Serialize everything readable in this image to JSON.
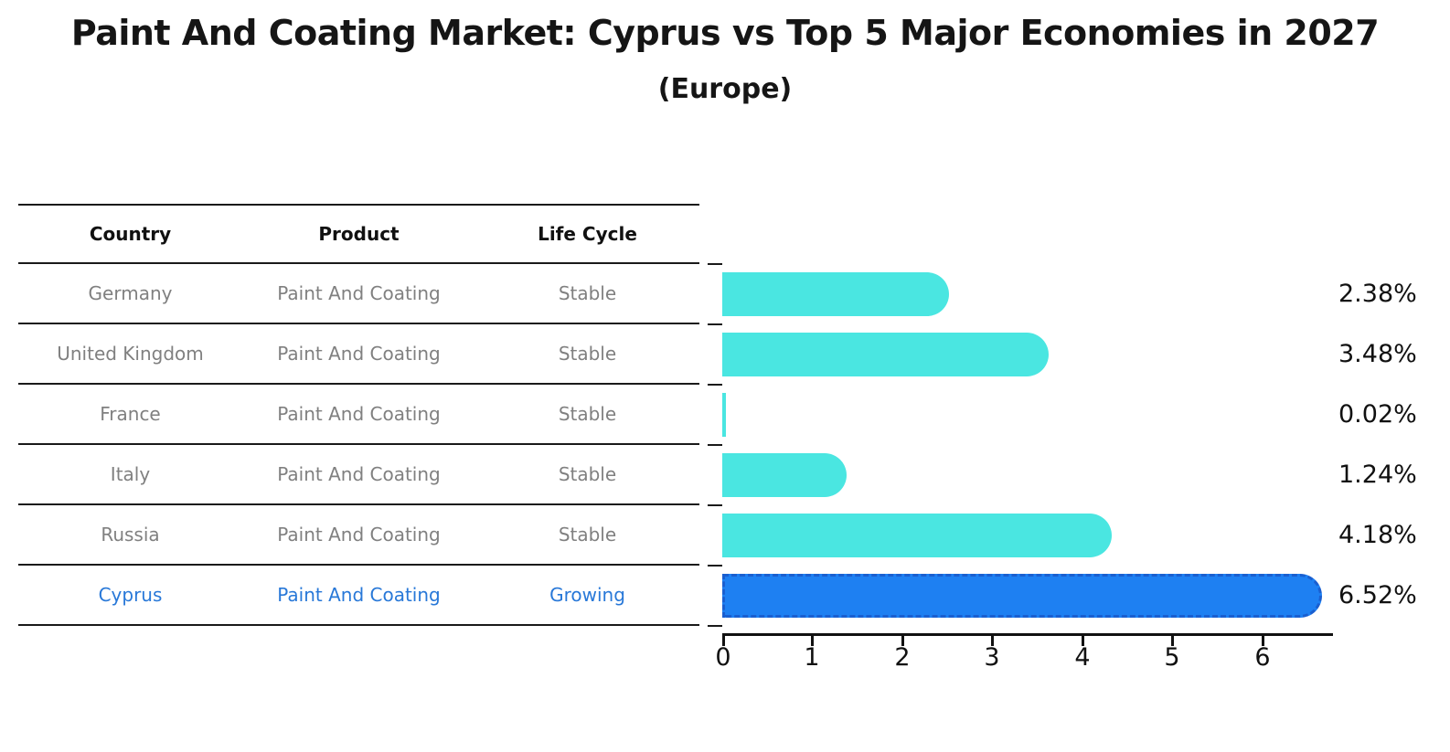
{
  "title": "Paint And Coating Market: Cyprus vs Top 5 Major Economies in 2027",
  "subtitle": "(Europe)",
  "table": {
    "columns": [
      "Country",
      "Product",
      "Life Cycle"
    ],
    "rows": [
      {
        "country": "Germany",
        "product": "Paint And Coating",
        "life_cycle": "Stable"
      },
      {
        "country": "United Kingdom",
        "product": "Paint And Coating",
        "life_cycle": "Stable"
      },
      {
        "country": "France",
        "product": "Paint And Coating",
        "life_cycle": "Stable"
      },
      {
        "country": "Italy",
        "product": "Paint And Coating",
        "life_cycle": "Stable"
      },
      {
        "country": "Russia",
        "product": "Paint And Coating",
        "life_cycle": "Stable"
      },
      {
        "country": "Cyprus",
        "product": "Paint And Coating",
        "life_cycle": "Growing"
      }
    ],
    "highlight_row": "Cyprus"
  },
  "chart_data": {
    "type": "bar",
    "orientation": "horizontal",
    "title": "Paint And Coating Market: Cyprus vs Top 5 Major Economies in 2027 (Europe)",
    "categories": [
      "Germany",
      "United Kingdom",
      "France",
      "Italy",
      "Russia",
      "Cyprus"
    ],
    "values": [
      2.38,
      3.48,
      0.02,
      1.24,
      4.18,
      6.52
    ],
    "value_labels": [
      "2.38%",
      "3.48%",
      "0.02%",
      "1.24%",
      "4.18%",
      "6.52%"
    ],
    "unit": "%",
    "xlim": [
      0,
      6.8
    ],
    "xticks": [
      "0",
      "1",
      "2",
      "3",
      "4",
      "5",
      "6"
    ],
    "grid": "off",
    "legend": "none",
    "highlight_index": 5,
    "bar_color": "#4AE6E1",
    "highlight_color": "#1E80F2",
    "highlight_border_color": "#1A5FD0"
  },
  "colors": {
    "row_text": "#808080",
    "highlight_text": "#2878D8",
    "line": "#1A1A1A"
  }
}
